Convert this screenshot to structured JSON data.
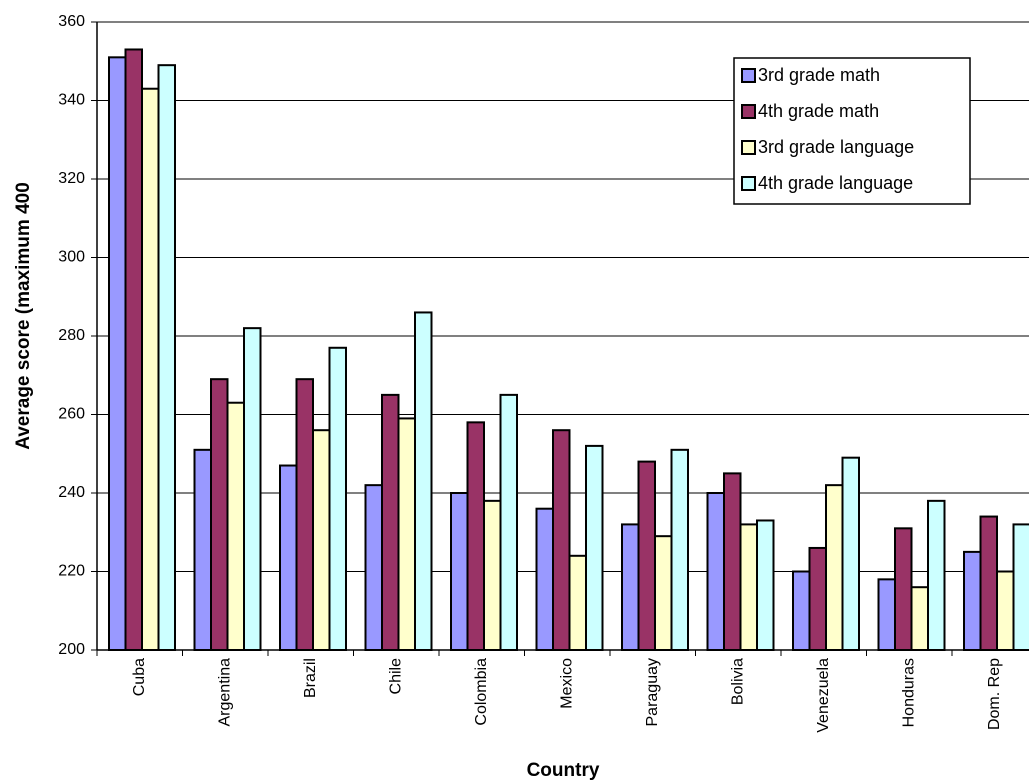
{
  "chart_data": {
    "type": "bar",
    "x_label": "Country",
    "y_label": "Average score (maximum 400",
    "categories": [
      "Cuba",
      "Argentina",
      "Brazil",
      "Chile",
      "Colombia",
      "Mexico",
      "Paraguay",
      "Bolivia",
      "Venezuela",
      "Honduras",
      "Dom. Rep"
    ],
    "series": [
      {
        "name": "3rd grade math",
        "color": "#9999ff",
        "values": [
          351,
          251,
          247,
          242,
          240,
          236,
          232,
          240,
          220,
          218,
          225
        ]
      },
      {
        "name": "4th grade math",
        "color": "#993366",
        "values": [
          353,
          269,
          269,
          265,
          258,
          256,
          248,
          245,
          226,
          231,
          234
        ]
      },
      {
        "name": "3rd grade language",
        "color": "#ffffcc",
        "values": [
          343,
          263,
          256,
          259,
          238,
          224,
          229,
          232,
          242,
          216,
          220
        ]
      },
      {
        "name": "4th grade language",
        "color": "#ccffff",
        "values": [
          349,
          282,
          277,
          286,
          265,
          252,
          251,
          233,
          249,
          238,
          232
        ]
      }
    ],
    "ylim": [
      200,
      360
    ],
    "yticks": [
      200,
      220,
      240,
      260,
      280,
      300,
      320,
      340,
      360
    ],
    "grid": true,
    "legend": "upper-right"
  }
}
